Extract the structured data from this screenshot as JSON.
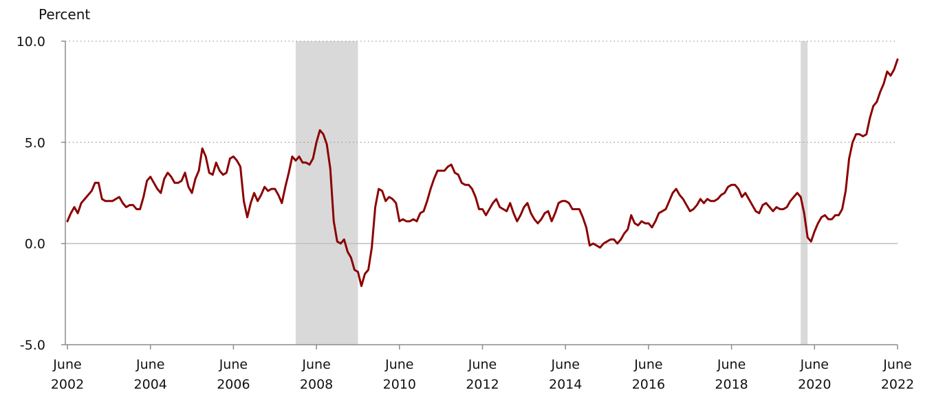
{
  "chart_data": {
    "type": "line",
    "title": "",
    "xlabel": "",
    "ylabel": "Percent",
    "ylim": [
      -5.0,
      10.0
    ],
    "yticks": [
      -5.0,
      0.0,
      5.0,
      10.0
    ],
    "ytick_labels": [
      "-5.0",
      "0.0",
      "5.0",
      "10.0"
    ],
    "xlim": [
      "2002-06",
      "2022-06"
    ],
    "xticks": [
      {
        "month": "June",
        "year": "2002",
        "date": "2002-06"
      },
      {
        "month": "June",
        "year": "2004",
        "date": "2004-06"
      },
      {
        "month": "June",
        "year": "2006",
        "date": "2006-06"
      },
      {
        "month": "June",
        "year": "2008",
        "date": "2008-06"
      },
      {
        "month": "June",
        "year": "2010",
        "date": "2010-06"
      },
      {
        "month": "June",
        "year": "2012",
        "date": "2012-06"
      },
      {
        "month": "June",
        "year": "2014",
        "date": "2014-06"
      },
      {
        "month": "June",
        "year": "2016",
        "date": "2016-06"
      },
      {
        "month": "June",
        "year": "2018",
        "date": "2018-06"
      },
      {
        "month": "June",
        "year": "2020",
        "date": "2020-06"
      },
      {
        "month": "June",
        "year": "2022",
        "date": "2022-06"
      }
    ],
    "grid": "dotted horizontal at 5.0 and 10.0",
    "line_color": "#8b0000",
    "recession_color": "#d9d9d9",
    "zero_line_color": "#bfbfbf",
    "recessions": [
      {
        "start": "2007-12",
        "end": "2009-06"
      },
      {
        "start": "2020-02",
        "end": "2020-04"
      }
    ],
    "series": [
      {
        "values": [
          [
            "2002-06",
            1.1
          ],
          [
            "2002-07",
            1.5
          ],
          [
            "2002-08",
            1.8
          ],
          [
            "2002-09",
            1.5
          ],
          [
            "2002-10",
            2.0
          ],
          [
            "2002-11",
            2.2
          ],
          [
            "2002-12",
            2.4
          ],
          [
            "2003-01",
            2.6
          ],
          [
            "2003-02",
            3.0
          ],
          [
            "2003-03",
            3.0
          ],
          [
            "2003-04",
            2.2
          ],
          [
            "2003-05",
            2.1
          ],
          [
            "2003-06",
            2.1
          ],
          [
            "2003-07",
            2.1
          ],
          [
            "2003-08",
            2.2
          ],
          [
            "2003-09",
            2.3
          ],
          [
            "2003-10",
            2.0
          ],
          [
            "2003-11",
            1.8
          ],
          [
            "2003-12",
            1.9
          ],
          [
            "2004-01",
            1.9
          ],
          [
            "2004-02",
            1.7
          ],
          [
            "2004-03",
            1.7
          ],
          [
            "2004-04",
            2.3
          ],
          [
            "2004-05",
            3.1
          ],
          [
            "2004-06",
            3.3
          ],
          [
            "2004-07",
            3.0
          ],
          [
            "2004-08",
            2.7
          ],
          [
            "2004-09",
            2.5
          ],
          [
            "2004-10",
            3.2
          ],
          [
            "2004-11",
            3.5
          ],
          [
            "2004-12",
            3.3
          ],
          [
            "2005-01",
            3.0
          ],
          [
            "2005-02",
            3.0
          ],
          [
            "2005-03",
            3.1
          ],
          [
            "2005-04",
            3.5
          ],
          [
            "2005-05",
            2.8
          ],
          [
            "2005-06",
            2.5
          ],
          [
            "2005-07",
            3.2
          ],
          [
            "2005-08",
            3.6
          ],
          [
            "2005-09",
            4.7
          ],
          [
            "2005-10",
            4.3
          ],
          [
            "2005-11",
            3.5
          ],
          [
            "2005-12",
            3.4
          ],
          [
            "2006-01",
            4.0
          ],
          [
            "2006-02",
            3.6
          ],
          [
            "2006-03",
            3.4
          ],
          [
            "2006-04",
            3.5
          ],
          [
            "2006-05",
            4.2
          ],
          [
            "2006-06",
            4.3
          ],
          [
            "2006-07",
            4.1
          ],
          [
            "2006-08",
            3.8
          ],
          [
            "2006-09",
            2.1
          ],
          [
            "2006-10",
            1.3
          ],
          [
            "2006-11",
            2.0
          ],
          [
            "2006-12",
            2.5
          ],
          [
            "2007-01",
            2.1
          ],
          [
            "2007-02",
            2.4
          ],
          [
            "2007-03",
            2.8
          ],
          [
            "2007-04",
            2.6
          ],
          [
            "2007-05",
            2.7
          ],
          [
            "2007-06",
            2.7
          ],
          [
            "2007-07",
            2.4
          ],
          [
            "2007-08",
            2.0
          ],
          [
            "2007-09",
            2.8
          ],
          [
            "2007-10",
            3.5
          ],
          [
            "2007-11",
            4.3
          ],
          [
            "2007-12",
            4.1
          ],
          [
            "2008-01",
            4.3
          ],
          [
            "2008-02",
            4.0
          ],
          [
            "2008-03",
            4.0
          ],
          [
            "2008-04",
            3.9
          ],
          [
            "2008-05",
            4.2
          ],
          [
            "2008-06",
            5.0
          ],
          [
            "2008-07",
            5.6
          ],
          [
            "2008-08",
            5.4
          ],
          [
            "2008-09",
            4.9
          ],
          [
            "2008-10",
            3.7
          ],
          [
            "2008-11",
            1.1
          ],
          [
            "2008-12",
            0.1
          ],
          [
            "2009-01",
            0.0
          ],
          [
            "2009-02",
            0.2
          ],
          [
            "2009-03",
            -0.4
          ],
          [
            "2009-04",
            -0.7
          ],
          [
            "2009-05",
            -1.3
          ],
          [
            "2009-06",
            -1.4
          ],
          [
            "2009-07",
            -2.1
          ],
          [
            "2009-08",
            -1.5
          ],
          [
            "2009-09",
            -1.3
          ],
          [
            "2009-10",
            -0.2
          ],
          [
            "2009-11",
            1.8
          ],
          [
            "2009-12",
            2.7
          ],
          [
            "2010-01",
            2.6
          ],
          [
            "2010-02",
            2.1
          ],
          [
            "2010-03",
            2.3
          ],
          [
            "2010-04",
            2.2
          ],
          [
            "2010-05",
            2.0
          ],
          [
            "2010-06",
            1.1
          ],
          [
            "2010-07",
            1.2
          ],
          [
            "2010-08",
            1.1
          ],
          [
            "2010-09",
            1.1
          ],
          [
            "2010-10",
            1.2
          ],
          [
            "2010-11",
            1.1
          ],
          [
            "2010-12",
            1.5
          ],
          [
            "2011-01",
            1.6
          ],
          [
            "2011-02",
            2.1
          ],
          [
            "2011-03",
            2.7
          ],
          [
            "2011-04",
            3.2
          ],
          [
            "2011-05",
            3.6
          ],
          [
            "2011-06",
            3.6
          ],
          [
            "2011-07",
            3.6
          ],
          [
            "2011-08",
            3.8
          ],
          [
            "2011-09",
            3.9
          ],
          [
            "2011-10",
            3.5
          ],
          [
            "2011-11",
            3.4
          ],
          [
            "2011-12",
            3.0
          ],
          [
            "2012-01",
            2.9
          ],
          [
            "2012-02",
            2.9
          ],
          [
            "2012-03",
            2.7
          ],
          [
            "2012-04",
            2.3
          ],
          [
            "2012-05",
            1.7
          ],
          [
            "2012-06",
            1.7
          ],
          [
            "2012-07",
            1.4
          ],
          [
            "2012-08",
            1.7
          ],
          [
            "2012-09",
            2.0
          ],
          [
            "2012-10",
            2.2
          ],
          [
            "2012-11",
            1.8
          ],
          [
            "2012-12",
            1.7
          ],
          [
            "2013-01",
            1.6
          ],
          [
            "2013-02",
            2.0
          ],
          [
            "2013-03",
            1.5
          ],
          [
            "2013-04",
            1.1
          ],
          [
            "2013-05",
            1.4
          ],
          [
            "2013-06",
            1.8
          ],
          [
            "2013-07",
            2.0
          ],
          [
            "2013-08",
            1.5
          ],
          [
            "2013-09",
            1.2
          ],
          [
            "2013-10",
            1.0
          ],
          [
            "2013-11",
            1.2
          ],
          [
            "2013-12",
            1.5
          ],
          [
            "2014-01",
            1.6
          ],
          [
            "2014-02",
            1.1
          ],
          [
            "2014-03",
            1.5
          ],
          [
            "2014-04",
            2.0
          ],
          [
            "2014-05",
            2.1
          ],
          [
            "2014-06",
            2.1
          ],
          [
            "2014-07",
            2.0
          ],
          [
            "2014-08",
            1.7
          ],
          [
            "2014-09",
            1.7
          ],
          [
            "2014-10",
            1.7
          ],
          [
            "2014-11",
            1.3
          ],
          [
            "2014-12",
            0.8
          ],
          [
            "2015-01",
            -0.1
          ],
          [
            "2015-02",
            0.0
          ],
          [
            "2015-03",
            -0.1
          ],
          [
            "2015-04",
            -0.2
          ],
          [
            "2015-05",
            0.0
          ],
          [
            "2015-06",
            0.1
          ],
          [
            "2015-07",
            0.2
          ],
          [
            "2015-08",
            0.2
          ],
          [
            "2015-09",
            0.0
          ],
          [
            "2015-10",
            0.2
          ],
          [
            "2015-11",
            0.5
          ],
          [
            "2015-12",
            0.7
          ],
          [
            "2016-01",
            1.4
          ],
          [
            "2016-02",
            1.0
          ],
          [
            "2016-03",
            0.9
          ],
          [
            "2016-04",
            1.1
          ],
          [
            "2016-05",
            1.0
          ],
          [
            "2016-06",
            1.0
          ],
          [
            "2016-07",
            0.8
          ],
          [
            "2016-08",
            1.1
          ],
          [
            "2016-09",
            1.5
          ],
          [
            "2016-10",
            1.6
          ],
          [
            "2016-11",
            1.7
          ],
          [
            "2016-12",
            2.1
          ],
          [
            "2017-01",
            2.5
          ],
          [
            "2017-02",
            2.7
          ],
          [
            "2017-03",
            2.4
          ],
          [
            "2017-04",
            2.2
          ],
          [
            "2017-05",
            1.9
          ],
          [
            "2017-06",
            1.6
          ],
          [
            "2017-07",
            1.7
          ],
          [
            "2017-08",
            1.9
          ],
          [
            "2017-09",
            2.2
          ],
          [
            "2017-10",
            2.0
          ],
          [
            "2017-11",
            2.2
          ],
          [
            "2017-12",
            2.1
          ],
          [
            "2018-01",
            2.1
          ],
          [
            "2018-02",
            2.2
          ],
          [
            "2018-03",
            2.4
          ],
          [
            "2018-04",
            2.5
          ],
          [
            "2018-05",
            2.8
          ],
          [
            "2018-06",
            2.9
          ],
          [
            "2018-07",
            2.9
          ],
          [
            "2018-08",
            2.7
          ],
          [
            "2018-09",
            2.3
          ],
          [
            "2018-10",
            2.5
          ],
          [
            "2018-11",
            2.2
          ],
          [
            "2018-12",
            1.9
          ],
          [
            "2019-01",
            1.6
          ],
          [
            "2019-02",
            1.5
          ],
          [
            "2019-03",
            1.9
          ],
          [
            "2019-04",
            2.0
          ],
          [
            "2019-05",
            1.8
          ],
          [
            "2019-06",
            1.6
          ],
          [
            "2019-07",
            1.8
          ],
          [
            "2019-08",
            1.7
          ],
          [
            "2019-09",
            1.7
          ],
          [
            "2019-10",
            1.8
          ],
          [
            "2019-11",
            2.1
          ],
          [
            "2019-12",
            2.3
          ],
          [
            "2020-01",
            2.5
          ],
          [
            "2020-02",
            2.3
          ],
          [
            "2020-03",
            1.5
          ],
          [
            "2020-04",
            0.3
          ],
          [
            "2020-05",
            0.1
          ],
          [
            "2020-06",
            0.6
          ],
          [
            "2020-07",
            1.0
          ],
          [
            "2020-08",
            1.3
          ],
          [
            "2020-09",
            1.4
          ],
          [
            "2020-10",
            1.2
          ],
          [
            "2020-11",
            1.2
          ],
          [
            "2020-12",
            1.4
          ],
          [
            "2021-01",
            1.4
          ],
          [
            "2021-02",
            1.7
          ],
          [
            "2021-03",
            2.6
          ],
          [
            "2021-04",
            4.2
          ],
          [
            "2021-05",
            5.0
          ],
          [
            "2021-06",
            5.4
          ],
          [
            "2021-07",
            5.4
          ],
          [
            "2021-08",
            5.3
          ],
          [
            "2021-09",
            5.4
          ],
          [
            "2021-10",
            6.2
          ],
          [
            "2021-11",
            6.8
          ],
          [
            "2021-12",
            7.0
          ],
          [
            "2022-01",
            7.5
          ],
          [
            "2022-02",
            7.9
          ],
          [
            "2022-03",
            8.5
          ],
          [
            "2022-04",
            8.3
          ],
          [
            "2022-05",
            8.6
          ],
          [
            "2022-06",
            9.1
          ]
        ]
      }
    ]
  }
}
